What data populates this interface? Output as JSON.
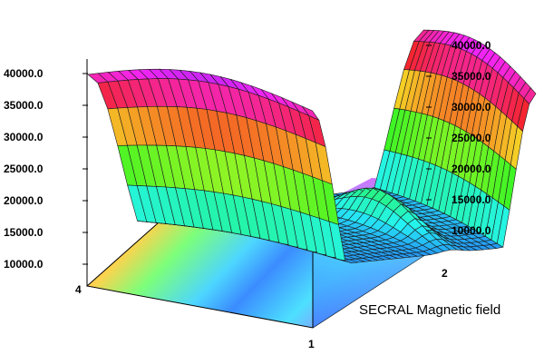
{
  "chart_data": {
    "type": "surface",
    "title": "",
    "caption": "SECRAL Magnetic field",
    "z_axis_left": {
      "ticks": [
        10000.0,
        15000.0,
        20000.0,
        25000.0,
        30000.0,
        35000.0,
        40000.0
      ],
      "tick_labels": [
        "10000.0",
        "15000.0",
        "20000.0",
        "25000.0",
        "30000.0",
        "35000.0",
        "40000.0"
      ]
    },
    "z_axis_right": {
      "ticks": [
        10000.0,
        15000.0,
        20000.0,
        25000.0,
        30000.0,
        35000.0,
        40000.0
      ],
      "tick_labels": [
        "10000.0",
        "15000.0",
        "20000.0",
        "25000.0",
        "30000.0",
        "35000.0",
        "40000.0"
      ]
    },
    "corner_labels": {
      "left": "4",
      "front": "1",
      "right": "2"
    },
    "zlim": [
      10000.0,
      42000.0
    ],
    "colormap": "rainbow",
    "grid": false,
    "surface_profile_description_values": {
      "end_peak_left": 42000.0,
      "end_peak_right": 41000.0,
      "center_minimum": 13500.0,
      "center_bump": 19000.0
    }
  }
}
